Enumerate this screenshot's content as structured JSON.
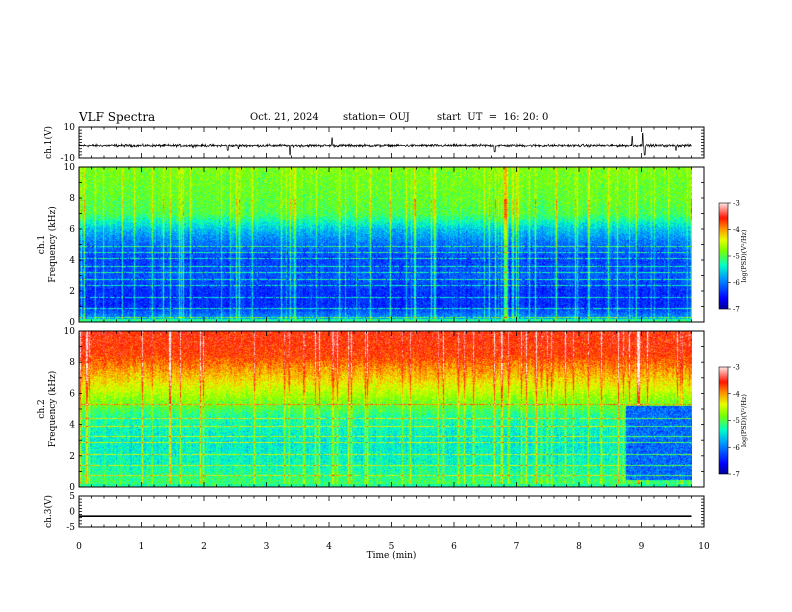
{
  "header": {
    "title": "VLF Spectra",
    "date": "Oct. 21, 2024",
    "station": "station= OUJ",
    "start": "start  UT  =  16: 20: 0"
  },
  "colors": {
    "scale": [
      "#000080",
      "#0000ff",
      "#00a0ff",
      "#00ffc0",
      "#80ff00",
      "#ffff00",
      "#ff8000",
      "#ff0000",
      "#ffffff"
    ]
  },
  "chart_data": [
    {
      "type": "line",
      "name": "ch1-waveform",
      "ylabel": "ch.1(V)",
      "xlim": [
        0,
        10
      ],
      "ylim": [
        -10,
        10
      ],
      "yticks": [
        "10",
        "-10"
      ],
      "baseline": -2,
      "noise_amplitude": 1.2,
      "spikes": [
        {
          "x": 2.38,
          "y": -5
        },
        {
          "x": 2.55,
          "y": -4
        },
        {
          "x": 3.38,
          "y": -8
        },
        {
          "x": 4.05,
          "y": 3
        },
        {
          "x": 6.65,
          "y": -6
        },
        {
          "x": 8.85,
          "y": 4
        },
        {
          "x": 9.02,
          "y": 6
        },
        {
          "x": 9.05,
          "y": -8
        },
        {
          "x": 9.55,
          "y": -5
        }
      ]
    },
    {
      "type": "heatmap",
      "name": "ch1-spectrogram",
      "ylabel": "Frequency (kHz)",
      "ylabel2": "ch.1",
      "xlim": [
        0,
        10
      ],
      "ylim": [
        0,
        10
      ],
      "yticks": [
        "0",
        "2",
        "4",
        "6",
        "8",
        "10"
      ],
      "colorbar": {
        "label": "log(PSD)(V²/Hz)",
        "range": [
          -7,
          -3
        ],
        "ticks": [
          "-3",
          "-4",
          "-5",
          "-6",
          "-7"
        ]
      },
      "levels_by_freq_kHz": [
        {
          "f": 0,
          "v": -5.6
        },
        {
          "f": 1,
          "v": -6.3
        },
        {
          "f": 2,
          "v": -6.3
        },
        {
          "f": 3,
          "v": -6.1
        },
        {
          "f": 4,
          "v": -6.2
        },
        {
          "f": 5,
          "v": -6.0
        },
        {
          "f": 6,
          "v": -5.6
        },
        {
          "f": 7,
          "v": -5.0
        },
        {
          "f": 8,
          "v": -4.9
        },
        {
          "f": 10,
          "v": -4.8
        }
      ],
      "narrowband_lines_kHz": [
        0.35,
        0.9,
        1.6,
        2.4,
        2.75,
        3.2,
        3.6,
        4.1,
        4.5,
        4.9
      ]
    },
    {
      "type": "heatmap",
      "name": "ch2-spectrogram",
      "ylabel": "Frequency (kHz)",
      "ylabel2": "ch.2",
      "xlim": [
        0,
        10
      ],
      "ylim": [
        0,
        10
      ],
      "yticks": [
        "0",
        "2",
        "4",
        "6",
        "8",
        "10"
      ],
      "colorbar": {
        "label": "log(PSD)(V²/Hz)",
        "range": [
          -7,
          -3
        ],
        "ticks": [
          "-3",
          "-4",
          "-5",
          "-6",
          "-7"
        ]
      },
      "levels_by_freq_kHz": [
        {
          "f": 0,
          "v": -5.0
        },
        {
          "f": 1.5,
          "v": -5.3
        },
        {
          "f": 3,
          "v": -5.4
        },
        {
          "f": 4.5,
          "v": -5.2
        },
        {
          "f": 5.5,
          "v": -4.8
        },
        {
          "f": 7,
          "v": -4.2
        },
        {
          "f": 8.5,
          "v": -3.7
        },
        {
          "f": 10,
          "v": -3.6
        }
      ],
      "quiet_region": {
        "x": [
          8.75,
          9.8
        ],
        "f": [
          0.5,
          5.2
        ],
        "v": -6.0
      },
      "narrowband_lines_kHz": [
        0.8,
        1.4,
        2.1,
        2.9,
        3.3,
        3.9,
        4.4,
        5.3
      ]
    },
    {
      "type": "line",
      "name": "ch3-waveform",
      "ylabel": "ch.3(V)",
      "xlim": [
        0,
        10
      ],
      "ylim": [
        -5,
        5
      ],
      "yticks": [
        "5",
        "0",
        "-5"
      ],
      "values_constant": -1.5
    }
  ],
  "xaxis": {
    "label": "Time (min)",
    "ticks": [
      "0",
      "1",
      "2",
      "3",
      "4",
      "5",
      "6",
      "7",
      "8",
      "9",
      "10"
    ],
    "data_end": 9.8
  }
}
